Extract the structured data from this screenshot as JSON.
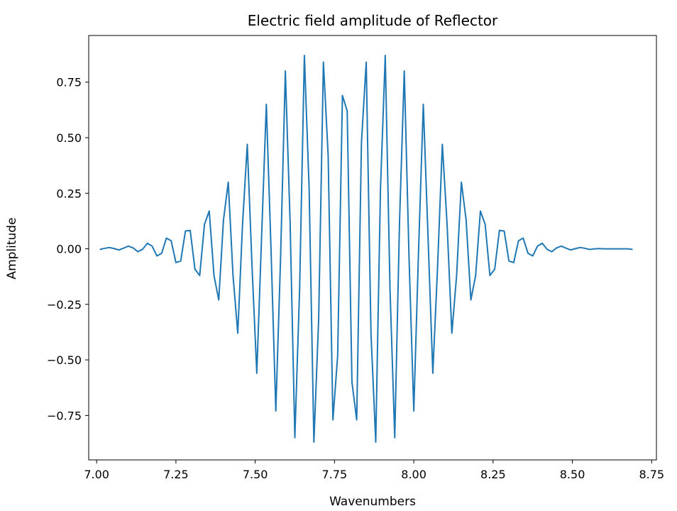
{
  "chart_data": {
    "type": "line",
    "title": "Electric field amplitude of Reflector",
    "xlabel": "Wavenumbers",
    "ylabel": "Amplitude",
    "xlim": [
      6.975,
      8.765
    ],
    "ylim": [
      -0.95,
      0.96
    ],
    "xticks": [
      7.0,
      7.25,
      7.5,
      7.75,
      8.0,
      8.25,
      8.5,
      8.75
    ],
    "xtick_labels": [
      "7.00",
      "7.25",
      "7.50",
      "7.75",
      "8.00",
      "8.25",
      "8.50",
      "8.75"
    ],
    "yticks": [
      -0.75,
      -0.5,
      -0.25,
      0.0,
      0.25,
      0.5,
      0.75
    ],
    "ytick_labels": [
      "−0.75",
      "−0.50",
      "−0.25",
      "0.00",
      "0.25",
      "0.50",
      "0.75"
    ],
    "grid": false,
    "series": [
      {
        "color": "#1f77b4",
        "x": [
          7.01,
          7.025,
          7.04,
          7.055,
          7.07,
          7.085,
          7.1,
          7.115,
          7.13,
          7.145,
          7.16,
          7.175,
          7.19,
          7.205,
          7.22,
          7.235,
          7.25,
          7.265,
          7.28,
          7.295,
          7.31,
          7.325,
          7.34,
          7.355,
          7.37,
          7.385,
          7.4,
          7.415,
          7.43,
          7.445,
          7.46,
          7.475,
          7.49,
          7.505,
          7.52,
          7.535,
          7.55,
          7.565,
          7.58,
          7.595,
          7.61,
          7.625,
          7.64,
          7.655,
          7.67,
          7.685,
          7.7,
          7.715,
          7.73,
          7.745,
          7.76,
          7.775,
          7.79,
          7.805,
          7.82,
          7.835,
          7.85,
          7.865,
          7.88,
          7.895,
          7.91,
          7.925,
          7.94,
          7.955,
          7.97,
          7.985,
          8.0,
          8.015,
          8.03,
          8.045,
          8.06,
          8.075,
          8.09,
          8.105,
          8.12,
          8.135,
          8.15,
          8.165,
          8.18,
          8.195,
          8.21,
          8.225,
          8.24,
          8.255,
          8.27,
          8.285,
          8.3,
          8.315,
          8.33,
          8.345,
          8.36,
          8.375,
          8.39,
          8.405,
          8.42,
          8.435,
          8.45,
          8.465,
          8.48,
          8.495,
          8.51,
          8.525,
          8.54,
          8.555,
          8.57,
          8.585,
          8.6,
          8.615,
          8.63,
          8.645,
          8.66,
          8.675,
          8.69
        ],
        "values": [
          -0.003,
          0.002,
          0.006,
          0.001,
          -0.005,
          0.003,
          0.012,
          0.004,
          -0.013,
          -0.002,
          0.025,
          0.012,
          -0.032,
          -0.02,
          0.048,
          0.036,
          -0.062,
          -0.055,
          0.08,
          0.083,
          -0.092,
          -0.12,
          0.11,
          0.17,
          -0.12,
          -0.23,
          0.13,
          0.3,
          -0.12,
          -0.38,
          0.11,
          0.47,
          -0.08,
          -0.56,
          0.05,
          0.65,
          -0.01,
          -0.73,
          -0.04,
          0.8,
          0.12,
          -0.85,
          -0.18,
          0.87,
          0.27,
          -0.87,
          -0.32,
          0.84,
          0.42,
          -0.77,
          -0.48,
          0.69,
          0.62,
          -0.6,
          -0.77,
          0.48,
          0.84,
          -0.38,
          -0.87,
          0.27,
          0.87,
          -0.18,
          -0.85,
          0.12,
          0.8,
          -0.04,
          -0.73,
          -0.01,
          0.65,
          0.05,
          -0.56,
          -0.08,
          0.47,
          0.11,
          -0.38,
          -0.12,
          0.3,
          0.13,
          -0.23,
          -0.12,
          0.17,
          0.11,
          -0.12,
          -0.092,
          0.083,
          0.08,
          -0.055,
          -0.062,
          0.036,
          0.048,
          -0.02,
          -0.032,
          0.012,
          0.025,
          -0.002,
          -0.013,
          0.004,
          0.012,
          0.003,
          -0.005,
          0.001,
          0.006,
          0.002,
          -0.003,
          0.0,
          0.001,
          0.0,
          0.0,
          0.0,
          0.0,
          0.0,
          0.0,
          -0.003
        ]
      }
    ]
  }
}
